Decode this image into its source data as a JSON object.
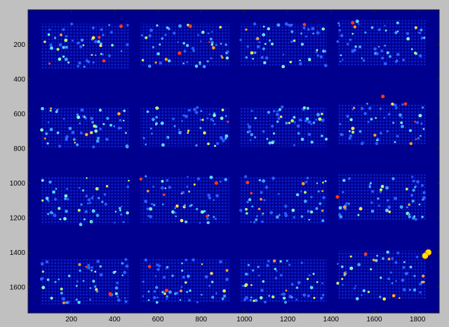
{
  "chart_data": {
    "type": "heatmap",
    "title": "",
    "xlabel": "",
    "ylabel": "",
    "xlim": [
      0,
      1900
    ],
    "ylim": [
      1750,
      0
    ],
    "y_direction": "reversed",
    "grid": false,
    "x_ticks": [
      {
        "value": 200,
        "label": "200"
      },
      {
        "value": 400,
        "label": "400"
      },
      {
        "value": 600,
        "label": "600"
      },
      {
        "value": 800,
        "label": "800"
      },
      {
        "value": 1000,
        "label": "1000"
      },
      {
        "value": 1200,
        "label": "1200"
      },
      {
        "value": 1400,
        "label": "1400"
      },
      {
        "value": 1600,
        "label": "1600"
      },
      {
        "value": 1800,
        "label": "1800"
      }
    ],
    "y_ticks": [
      {
        "value": 200,
        "label": "200"
      },
      {
        "value": 400,
        "label": "400"
      },
      {
        "value": 600,
        "label": "600"
      },
      {
        "value": 800,
        "label": "800"
      },
      {
        "value": 1000,
        "label": "1000"
      },
      {
        "value": 1200,
        "label": "1200"
      },
      {
        "value": 1400,
        "label": "1400"
      },
      {
        "value": 1600,
        "label": "1600"
      }
    ],
    "colormap": "jet",
    "background_color": "#00008f",
    "block_grid": {
      "rows": 4,
      "cols": 4
    },
    "blocks": [
      {
        "row": 1,
        "col": 1,
        "x_range": [
          60,
          470
        ],
        "y_range": [
          80,
          340
        ]
      },
      {
        "row": 1,
        "col": 2,
        "x_range": [
          520,
          930
        ],
        "y_range": [
          80,
          330
        ]
      },
      {
        "row": 1,
        "col": 3,
        "x_range": [
          980,
          1380
        ],
        "y_range": [
          80,
          330
        ]
      },
      {
        "row": 1,
        "col": 4,
        "x_range": [
          1430,
          1840
        ],
        "y_range": [
          60,
          320
        ]
      },
      {
        "row": 2,
        "col": 1,
        "x_range": [
          60,
          470
        ],
        "y_range": [
          560,
          800
        ]
      },
      {
        "row": 2,
        "col": 2,
        "x_range": [
          520,
          930
        ],
        "y_range": [
          560,
          790
        ]
      },
      {
        "row": 2,
        "col": 3,
        "x_range": [
          980,
          1380
        ],
        "y_range": [
          560,
          790
        ]
      },
      {
        "row": 2,
        "col": 4,
        "x_range": [
          1430,
          1840
        ],
        "y_range": [
          540,
          780
        ]
      },
      {
        "row": 3,
        "col": 1,
        "x_range": [
          60,
          470
        ],
        "y_range": [
          960,
          1240
        ]
      },
      {
        "row": 3,
        "col": 2,
        "x_range": [
          520,
          930
        ],
        "y_range": [
          960,
          1230
        ]
      },
      {
        "row": 3,
        "col": 3,
        "x_range": [
          980,
          1380
        ],
        "y_range": [
          960,
          1230
        ]
      },
      {
        "row": 3,
        "col": 4,
        "x_range": [
          1430,
          1840
        ],
        "y_range": [
          950,
          1220
        ]
      },
      {
        "row": 4,
        "col": 1,
        "x_range": [
          60,
          470
        ],
        "y_range": [
          1440,
          1700
        ]
      },
      {
        "row": 4,
        "col": 2,
        "x_range": [
          520,
          930
        ],
        "y_range": [
          1440,
          1690
        ]
      },
      {
        "row": 4,
        "col": 3,
        "x_range": [
          980,
          1380
        ],
        "y_range": [
          1440,
          1690
        ]
      },
      {
        "row": 4,
        "col": 4,
        "x_range": [
          1430,
          1840
        ],
        "y_range": [
          1390,
          1670
        ]
      }
    ],
    "hotspots": [
      {
        "x": 430,
        "y": 95,
        "level": "high"
      },
      {
        "x": 750,
        "y": 95,
        "level": "high"
      },
      {
        "x": 1500,
        "y": 75,
        "level": "high"
      },
      {
        "x": 700,
        "y": 250,
        "level": "high"
      },
      {
        "x": 1640,
        "y": 500,
        "level": "high"
      },
      {
        "x": 270,
        "y": 720,
        "level": "medium"
      },
      {
        "x": 420,
        "y": 600,
        "level": "medium"
      },
      {
        "x": 870,
        "y": 1000,
        "level": "high"
      },
      {
        "x": 1430,
        "y": 1080,
        "level": "high"
      },
      {
        "x": 1850,
        "y": 1400,
        "level": "max"
      },
      {
        "x": 1835,
        "y": 1420,
        "level": "max"
      },
      {
        "x": 640,
        "y": 1620,
        "level": "high"
      },
      {
        "x": 380,
        "y": 1640,
        "level": "high"
      },
      {
        "x": 1690,
        "y": 1650,
        "level": "medium"
      }
    ]
  }
}
